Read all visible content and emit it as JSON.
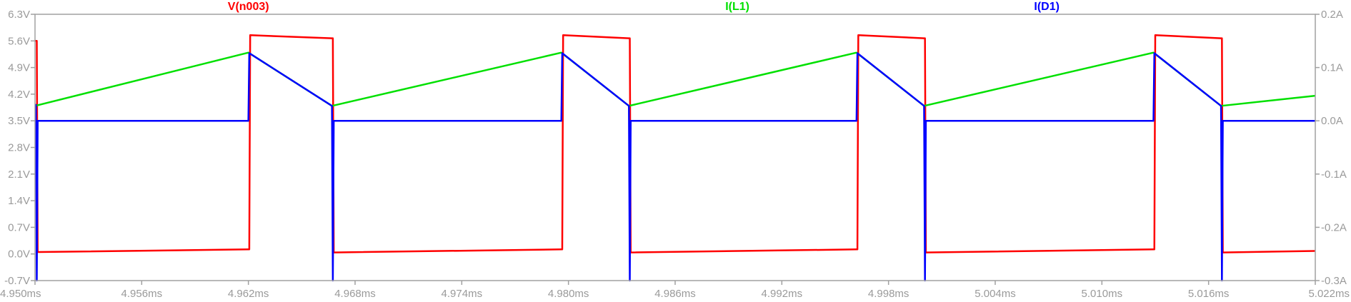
{
  "chart_data": {
    "type": "line",
    "title": "",
    "xlabel": "",
    "ylabel": "",
    "x_unit": "ms",
    "xlim": [
      4.95,
      5.022
    ],
    "ylim_left": [
      -0.7,
      6.3
    ],
    "ylim_right": [
      -0.3,
      0.2
    ],
    "grid": false,
    "colors": {
      "frame": "#a0a0a0",
      "tick_text": "#9a9a9a",
      "background": "#ffffff"
    },
    "x_ticks": [
      {
        "value": 4.95,
        "label": "4.950ms"
      },
      {
        "value": 4.956,
        "label": "4.956ms"
      },
      {
        "value": 4.962,
        "label": "4.962ms"
      },
      {
        "value": 4.968,
        "label": "4.968ms"
      },
      {
        "value": 4.974,
        "label": "4.974ms"
      },
      {
        "value": 4.98,
        "label": "4.980ms"
      },
      {
        "value": 4.986,
        "label": "4.986ms"
      },
      {
        "value": 4.992,
        "label": "4.992ms"
      },
      {
        "value": 4.998,
        "label": "4.998ms"
      },
      {
        "value": 5.004,
        "label": "5.004ms"
      },
      {
        "value": 5.01,
        "label": "5.010ms"
      },
      {
        "value": 5.016,
        "label": "5.016ms"
      },
      {
        "value": 5.022,
        "label": "5.022ms"
      }
    ],
    "y_left_ticks": [
      {
        "value": 6.3,
        "label": "6.3V"
      },
      {
        "value": 5.6,
        "label": "5.6V"
      },
      {
        "value": 4.9,
        "label": "4.9V"
      },
      {
        "value": 4.2,
        "label": "4.2V"
      },
      {
        "value": 3.5,
        "label": "3.5V"
      },
      {
        "value": 2.8,
        "label": "2.8V"
      },
      {
        "value": 2.1,
        "label": "2.1V"
      },
      {
        "value": 1.4,
        "label": "1.4V"
      },
      {
        "value": 0.7,
        "label": "0.7V"
      },
      {
        "value": 0.0,
        "label": "0.0V"
      },
      {
        "value": -0.7,
        "label": "-0.7V"
      }
    ],
    "y_right_ticks": [
      {
        "value": 0.2,
        "label": "0.2A"
      },
      {
        "value": 0.1,
        "label": "0.1A"
      },
      {
        "value": 0.0,
        "label": "0.0A"
      },
      {
        "value": -0.1,
        "label": "-0.1A"
      },
      {
        "value": -0.2,
        "label": "-0.2A"
      },
      {
        "value": -0.3,
        "label": "-0.3A"
      }
    ],
    "series": [
      {
        "name": "V(n003)",
        "axis": "left",
        "color": "#ff0000",
        "label_center_x": 4.962,
        "x": [
          4.95,
          4.9501,
          4.95015,
          4.9502,
          4.962,
          4.96205,
          4.9621,
          4.9667,
          4.96675,
          4.9668,
          4.9796,
          4.97965,
          4.9797,
          4.9834,
          4.98345,
          4.9835,
          4.9962,
          4.99625,
          4.9963,
          5.0,
          5.00005,
          5.0001,
          5.0129,
          5.01295,
          5.013,
          5.0167,
          5.01675,
          5.0168,
          5.022
        ],
        "y": [
          5.6,
          5.6,
          0.05,
          0.05,
          0.12,
          0.12,
          5.75,
          5.67,
          5.67,
          0.04,
          0.12,
          0.12,
          5.75,
          5.67,
          5.67,
          0.04,
          0.12,
          0.12,
          5.75,
          5.67,
          5.67,
          0.04,
          0.12,
          0.12,
          5.75,
          5.67,
          5.67,
          0.04,
          0.08
        ]
      },
      {
        "name": "I(L1)",
        "axis": "right",
        "color": "#00e000",
        "label_center_x": 4.9895,
        "x": [
          4.95,
          4.962,
          4.9667,
          4.9796,
          4.9834,
          4.9962,
          5.0,
          5.0129,
          5.0167,
          5.022
        ],
        "y": [
          0.028,
          0.128,
          0.028,
          0.128,
          0.028,
          0.128,
          0.028,
          0.128,
          0.028,
          0.047
        ]
      },
      {
        "name": "I(D1)",
        "axis": "right",
        "color": "#0000ff",
        "label_center_x": 5.0069,
        "x": [
          4.95,
          4.95005,
          4.9501,
          4.95015,
          4.962,
          4.96205,
          4.9667,
          4.96675,
          4.9668,
          4.9796,
          4.97965,
          4.9834,
          4.98345,
          4.9835,
          4.9962,
          4.99625,
          5.0,
          5.00005,
          5.0001,
          5.0129,
          5.01295,
          5.0167,
          5.01675,
          5.0168,
          5.022
        ],
        "y": [
          0.03,
          0.03,
          -0.3,
          0.0,
          0.0,
          0.127,
          0.028,
          -0.3,
          0.0,
          0.0,
          0.127,
          0.028,
          -0.3,
          0.0,
          0.0,
          0.127,
          0.028,
          -0.3,
          0.0,
          0.0,
          0.127,
          0.028,
          -0.3,
          0.0,
          0.0
        ]
      }
    ]
  }
}
